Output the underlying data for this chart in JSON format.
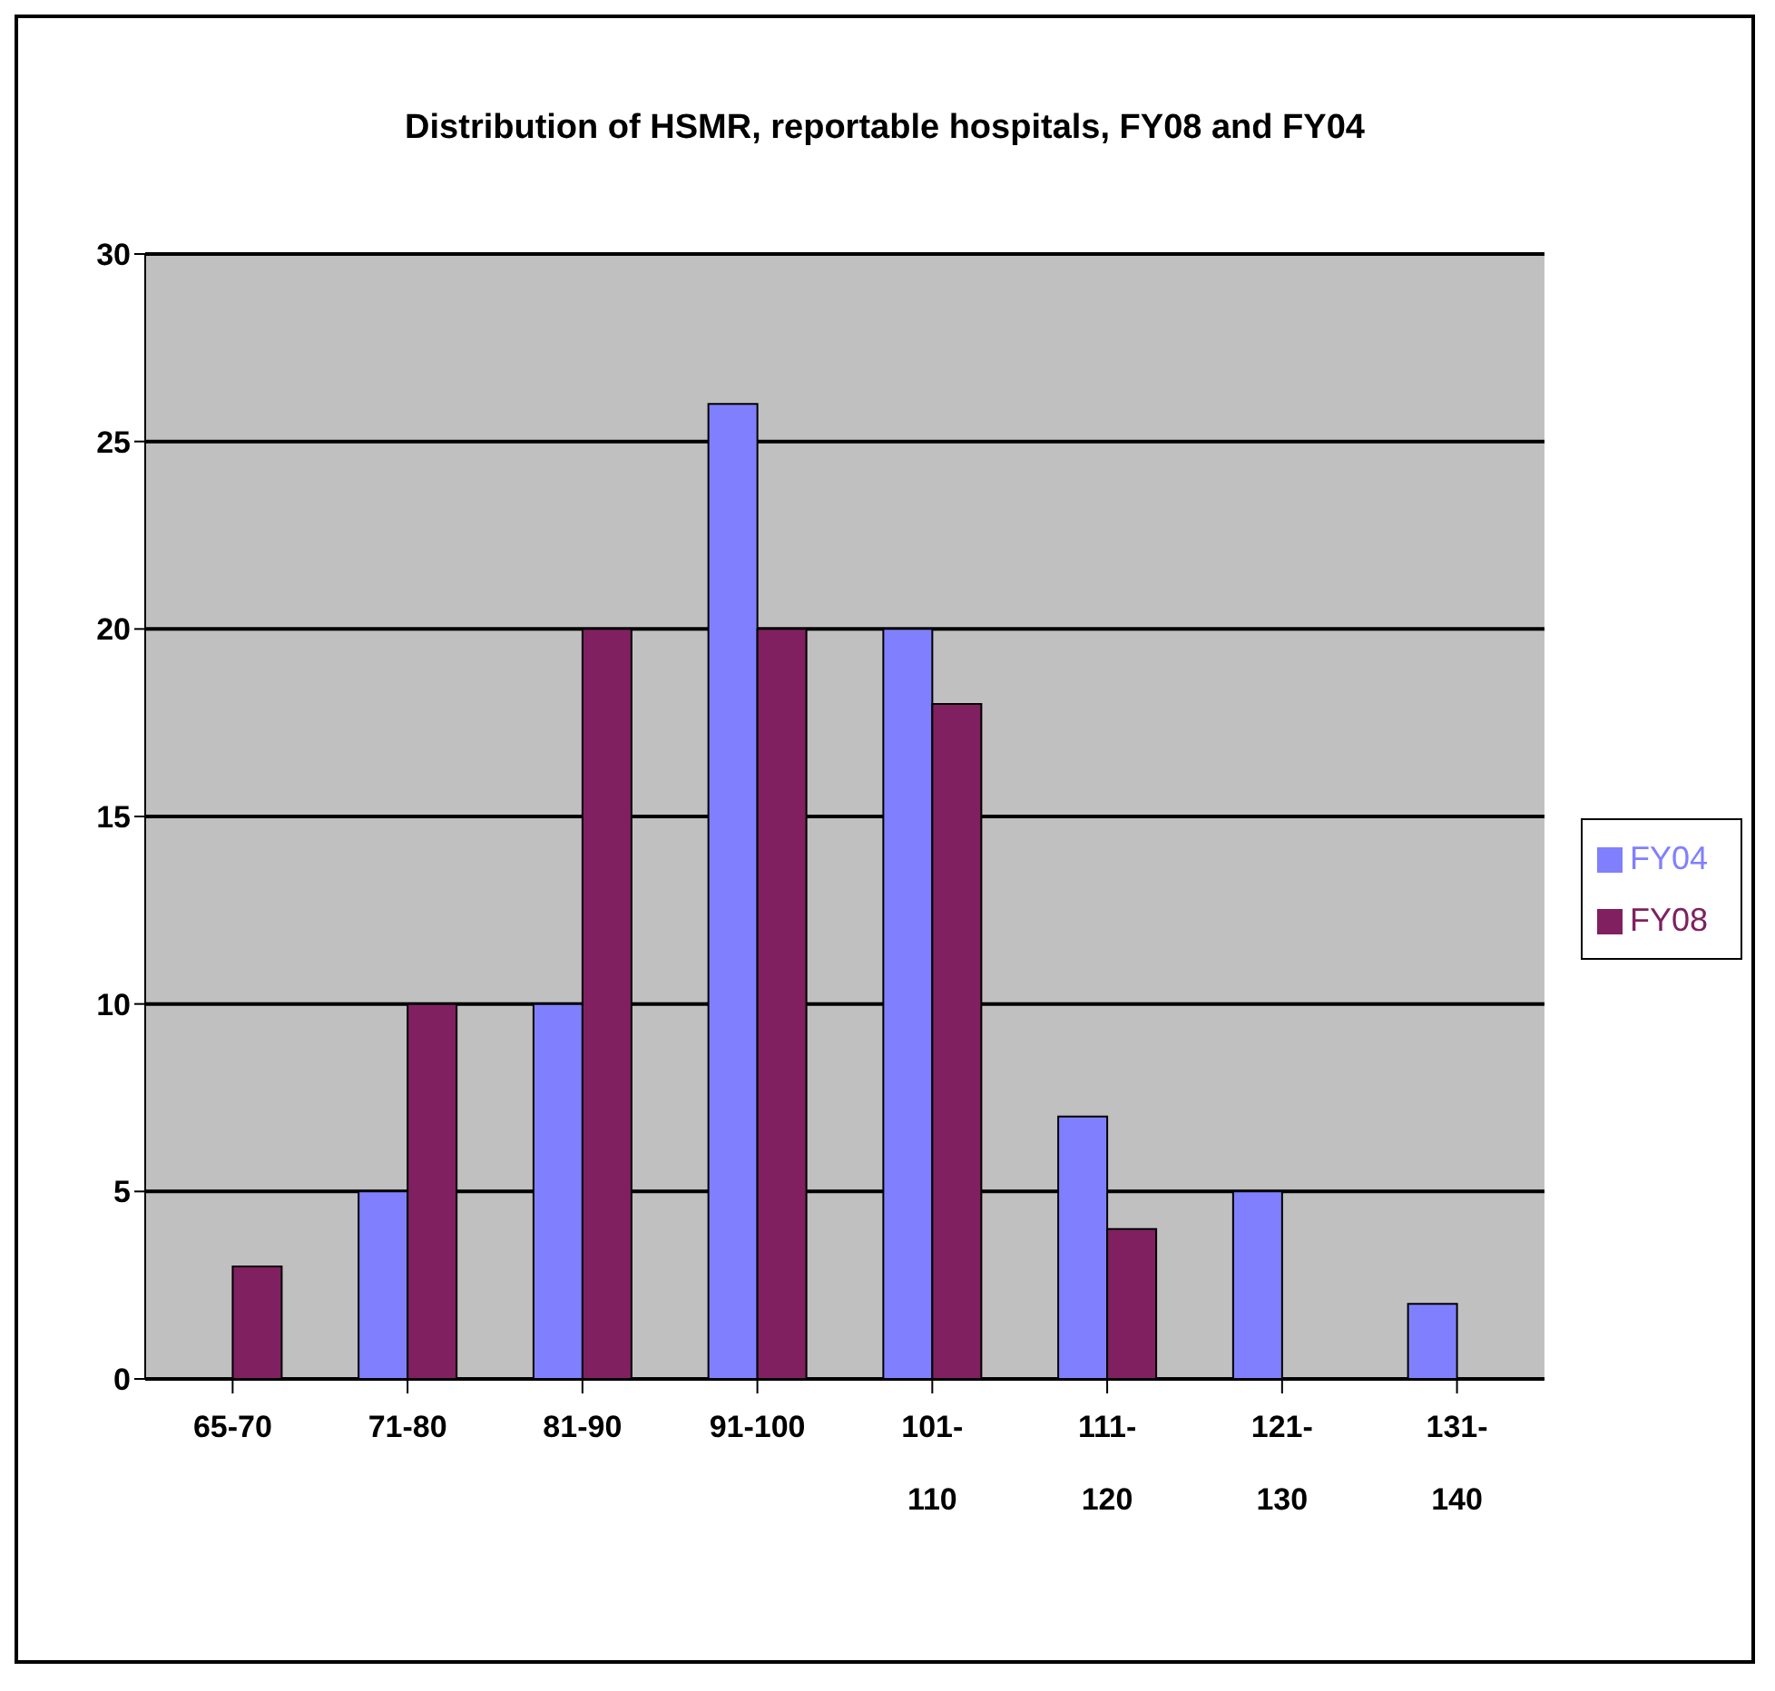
{
  "chart_data": {
    "type": "bar",
    "title": "Distribution of HSMR, reportable hospitals, FY08 and FY04",
    "categories": [
      "65-70",
      "71-80",
      "81-90",
      "91-100",
      "101-\n110",
      "111-\n120",
      "121-\n130",
      "131-\n140"
    ],
    "series": [
      {
        "name": "FY04",
        "color": "#8080ff",
        "values": [
          0,
          5,
          10,
          26,
          20,
          7,
          5,
          2
        ]
      },
      {
        "name": "FY08",
        "color": "#802060",
        "values": [
          3,
          10,
          20,
          20,
          18,
          4,
          0,
          0
        ]
      }
    ],
    "ylim": [
      0,
      30
    ],
    "yticks": [
      0,
      5,
      10,
      15,
      20,
      25,
      30
    ],
    "grid": "y",
    "legend": "right"
  }
}
